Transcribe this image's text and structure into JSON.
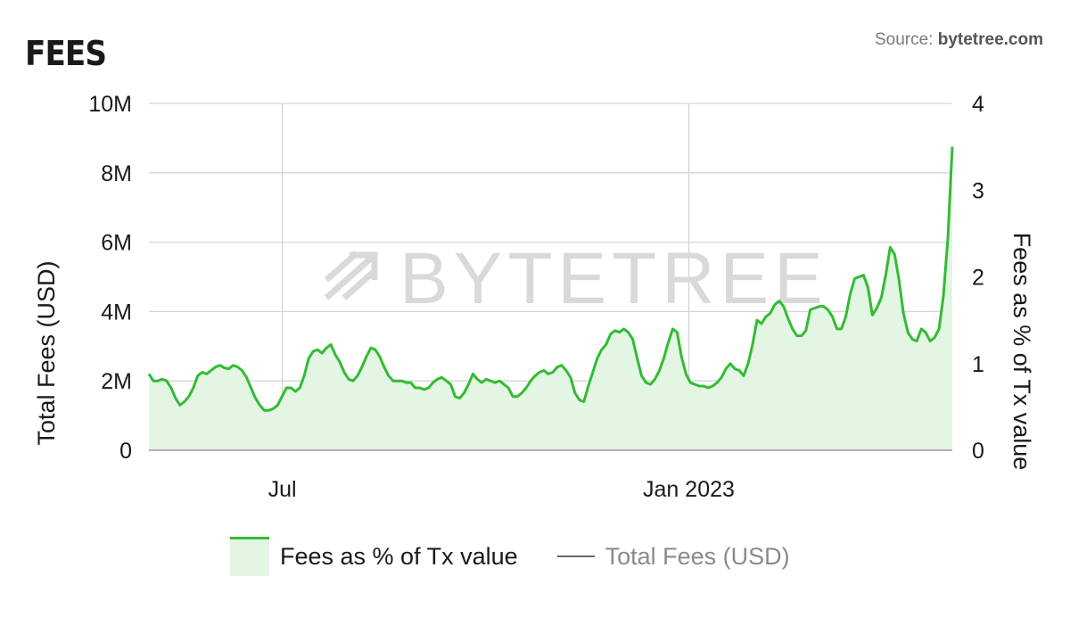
{
  "header": {
    "title": "FEES",
    "source_prefix": "Source:",
    "source_name": "bytetree.com"
  },
  "watermark": "BYTETREE",
  "colors": {
    "fees_pct_line": "#33bb33",
    "fees_pct_fill": "#e3f5e3",
    "total_fees_line": "#666666",
    "grid": "#d4d4d4"
  },
  "chart_data": {
    "type": "area",
    "ylabel": "Total Fees (USD)",
    "y2label": "Fees as % of Tx value",
    "left_ticks": [
      "0",
      "2M",
      "4M",
      "6M",
      "8M",
      "10M"
    ],
    "right_ticks": [
      "0",
      "1",
      "2",
      "3",
      "4"
    ],
    "ylim_left": [
      0,
      10000000
    ],
    "ylim_right": [
      0,
      4
    ],
    "x_ticks": [
      {
        "label": "Jul",
        "pos": 0.166
      },
      {
        "label": "Jan 2023",
        "pos": 0.672
      }
    ],
    "grid": true,
    "legend_position": "bottom",
    "series": [
      {
        "name": "Fees as % of Tx value",
        "axis": "right",
        "values": [
          0.88,
          0.8,
          0.8,
          0.82,
          0.8,
          0.72,
          0.6,
          0.52,
          0.56,
          0.62,
          0.72,
          0.86,
          0.9,
          0.88,
          0.92,
          0.96,
          0.98,
          0.95,
          0.94,
          0.98,
          0.96,
          0.92,
          0.84,
          0.72,
          0.6,
          0.52,
          0.46,
          0.46,
          0.48,
          0.52,
          0.62,
          0.72,
          0.72,
          0.68,
          0.72,
          0.86,
          1.06,
          1.14,
          1.16,
          1.12,
          1.18,
          1.22,
          1.1,
          1.02,
          0.9,
          0.82,
          0.8,
          0.86,
          0.96,
          1.08,
          1.18,
          1.16,
          1.08,
          0.96,
          0.86,
          0.8,
          0.8,
          0.8,
          0.78,
          0.78,
          0.72,
          0.72,
          0.7,
          0.72,
          0.78,
          0.82,
          0.84,
          0.8,
          0.76,
          0.62,
          0.6,
          0.66,
          0.76,
          0.88,
          0.82,
          0.78,
          0.82,
          0.8,
          0.78,
          0.8,
          0.76,
          0.72,
          0.62,
          0.62,
          0.66,
          0.72,
          0.8,
          0.86,
          0.9,
          0.92,
          0.88,
          0.9,
          0.96,
          0.98,
          0.92,
          0.84,
          0.66,
          0.58,
          0.56,
          0.74,
          0.9,
          1.06,
          1.16,
          1.22,
          1.34,
          1.38,
          1.36,
          1.4,
          1.36,
          1.28,
          1.06,
          0.86,
          0.78,
          0.76,
          0.82,
          0.92,
          1.06,
          1.24,
          1.4,
          1.36,
          1.08,
          0.88,
          0.78,
          0.76,
          0.74,
          0.74,
          0.72,
          0.74,
          0.78,
          0.84,
          0.94,
          1.0,
          0.94,
          0.92,
          0.86,
          1.0,
          1.22,
          1.5,
          1.46,
          1.54,
          1.58,
          1.68,
          1.72,
          1.66,
          1.52,
          1.4,
          1.32,
          1.32,
          1.38,
          1.62,
          1.64,
          1.66,
          1.66,
          1.62,
          1.54,
          1.4,
          1.4,
          1.54,
          1.8,
          1.98,
          2.0,
          2.02,
          1.88,
          1.56,
          1.64,
          1.76,
          2.02,
          2.34,
          2.26,
          1.96,
          1.58,
          1.36,
          1.28,
          1.26,
          1.4,
          1.36,
          1.26,
          1.3,
          1.4,
          1.78,
          2.44,
          3.5
        ]
      },
      {
        "name": "Total Fees (USD)",
        "axis": "left",
        "values": []
      }
    ]
  }
}
